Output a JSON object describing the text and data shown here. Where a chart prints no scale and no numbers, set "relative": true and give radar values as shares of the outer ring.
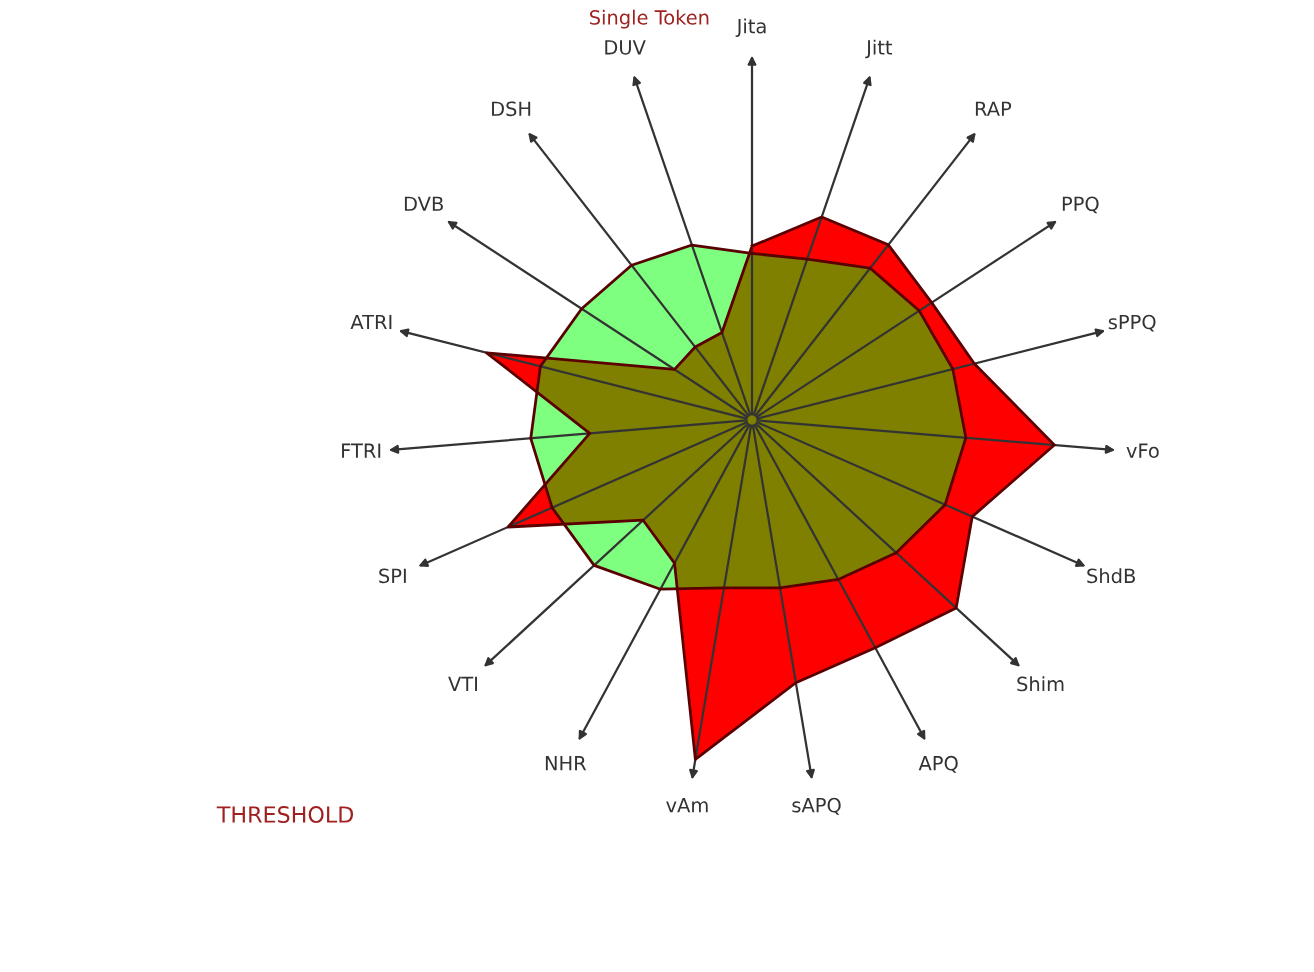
{
  "chart_data": {
    "type": "radar",
    "relative": true,
    "title": "Single Token",
    "annotations": [
      "THRESHOLD"
    ],
    "categories": [
      "Jita",
      "Jitt",
      "RAP",
      "PPQ",
      "sPPQ",
      "vFo",
      "ShdB",
      "Shim",
      "APQ",
      "sAPQ",
      "vAm",
      "NHR",
      "VTI",
      "SPI",
      "FTRI",
      "ATRI",
      "DVB",
      "DSH",
      "DUV"
    ],
    "series": [
      {
        "color": "#ff0000",
        "values": [
          0.47,
          0.58,
          0.6,
          0.58,
          0.62,
          0.82,
          0.65,
          0.75,
          0.7,
          0.72,
          0.93,
          0.44,
          0.4,
          0.72,
          0.44,
          0.74,
          0.25,
          0.25,
          0.25
        ]
      },
      {
        "color": "#00ff00",
        "values": [
          0.45,
          0.46,
          0.52,
          0.54,
          0.56,
          0.58,
          0.57,
          0.53,
          0.49,
          0.46,
          0.46,
          0.52,
          0.58,
          0.59,
          0.6,
          0.59,
          0.55,
          0.53,
          0.5
        ]
      }
    ]
  }
}
